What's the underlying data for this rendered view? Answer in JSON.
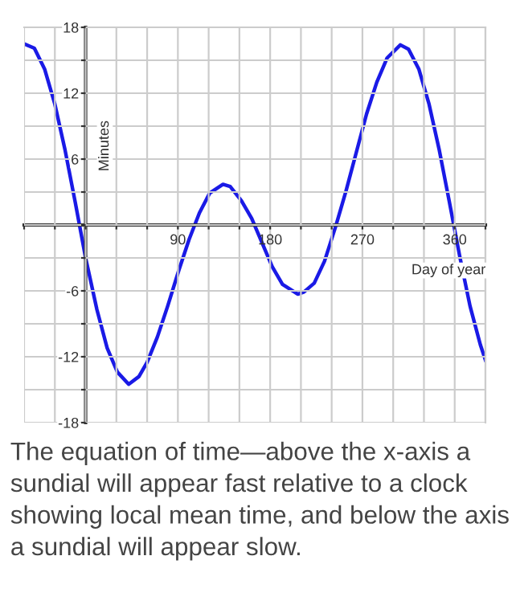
{
  "chart_data": {
    "type": "line",
    "xlabel": "Day of year",
    "ylabel": "Minutes",
    "x": [
      -60,
      -50,
      -40,
      -30,
      -20,
      -10,
      0,
      11,
      21,
      31,
      42,
      52,
      60,
      70,
      80,
      91,
      101,
      111,
      121,
      134,
      141,
      152,
      162,
      172,
      182,
      192,
      207,
      213,
      223,
      233,
      244,
      254,
      264,
      274,
      284,
      294,
      307,
      315,
      325,
      335,
      345,
      355,
      365,
      375,
      385,
      390
    ],
    "series": [
      {
        "color": "#1a1ae6",
        "values": [
          16.5,
          16.1,
          14.2,
          11.0,
          6.8,
          2.0,
          -3.0,
          -7.7,
          -11.2,
          -13.4,
          -14.5,
          -13.8,
          -12.5,
          -10.2,
          -7.4,
          -4.1,
          -1.3,
          1.1,
          2.9,
          3.7,
          3.5,
          2.2,
          0.6,
          -1.6,
          -3.8,
          -5.4,
          -6.3,
          -6.1,
          -5.3,
          -3.3,
          -0.1,
          3.1,
          6.6,
          10.1,
          13.0,
          15.2,
          16.4,
          16.0,
          14.2,
          11.0,
          6.8,
          2.0,
          -2.9,
          -7.4,
          -10.9,
          -12.3
        ]
      }
    ],
    "xlim": [
      -60,
      390
    ],
    "xticks": [
      {
        "value": -60,
        "label": null
      },
      {
        "value": -30,
        "label": null
      },
      {
        "value": 0,
        "label": null
      },
      {
        "value": 30,
        "label": null
      },
      {
        "value": 60,
        "label": null
      },
      90,
      {
        "value": 120,
        "label": null
      },
      {
        "value": 150,
        "label": null
      },
      180,
      {
        "value": 210,
        "label": null
      },
      {
        "value": 240,
        "label": null
      },
      270,
      {
        "value": 300,
        "label": null
      },
      {
        "value": 330,
        "label": null
      },
      360,
      {
        "value": 390,
        "label": null
      }
    ],
    "ylim": [
      -18,
      18
    ],
    "yticks": [
      -18,
      {
        "value": -15,
        "label": null
      },
      -12,
      {
        "value": -9,
        "label": null
      },
      -6,
      {
        "value": -3,
        "label": null
      },
      {
        "value": 0,
        "label": null
      },
      {
        "value": 3,
        "label": null
      },
      6,
      {
        "value": 9,
        "label": null
      },
      12,
      {
        "value": 15,
        "label": null
      },
      18
    ],
    "grid": true,
    "marker": "none",
    "line_style": "solid",
    "legend": false,
    "annotations": [
      "The equation of time—above the x-axis a sundial will appear fast relative to a clock showing local mean time, and below the axis a sundial will appear slow."
    ]
  }
}
